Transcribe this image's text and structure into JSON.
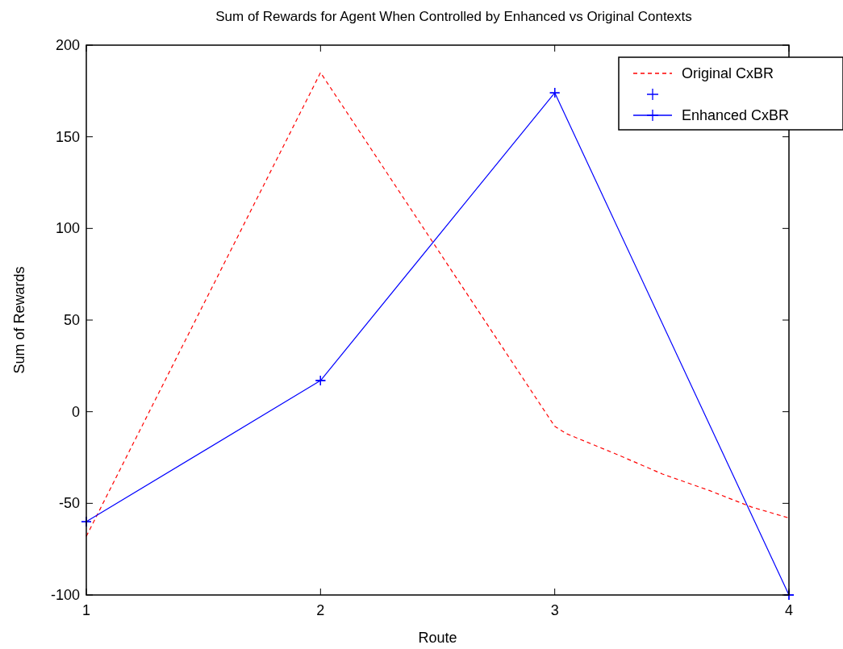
{
  "chart_data": {
    "type": "line",
    "title": "Sum of Rewards for Agent When Controlled by Enhanced vs Original Contexts",
    "xlabel": "Route",
    "ylabel": "Sum of Rewards",
    "xlim": [
      1,
      4
    ],
    "xticks": [
      1,
      2,
      3,
      4
    ],
    "ylim": [
      -100,
      200
    ],
    "yticks": [
      -100,
      -50,
      0,
      50,
      100,
      150,
      200
    ],
    "grid": false,
    "legend": "top right",
    "series": [
      {
        "name": "Original CxBR",
        "color": "#ff0000",
        "line_style": "dashed",
        "marker": "none",
        "x": [
          1,
          2,
          3,
          3.05,
          3.26,
          3.46,
          3.66,
          3.84,
          4
        ],
        "values": [
          -68,
          185,
          -8,
          -12,
          -23,
          -34,
          -43,
          -52,
          -58
        ]
      },
      {
        "type": "scatter",
        "color": "#0000ff",
        "marker": "cross",
        "x": [
          1,
          2,
          3,
          4
        ],
        "values": [
          -60,
          17,
          174,
          -100
        ]
      },
      {
        "name": "Enhanced CxBR",
        "color": "#0000ff",
        "line_style": "solid",
        "marker": "cross",
        "x": [
          1,
          2,
          3,
          4
        ],
        "values": [
          -60,
          17,
          174,
          -100
        ]
      }
    ]
  }
}
